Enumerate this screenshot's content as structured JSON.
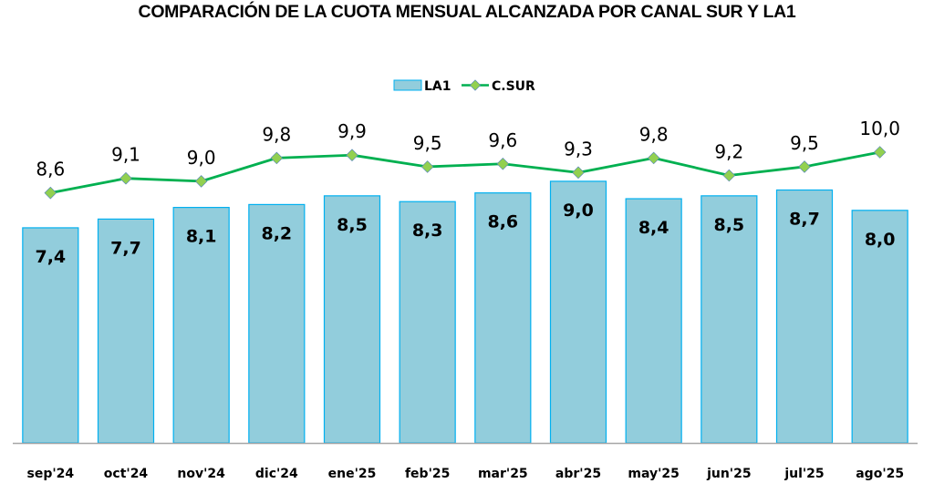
{
  "chart_data": {
    "type": "bar",
    "title": "COMPARACIÓN DE LA CUOTA MENSUAL ALCANZADA POR CANAL SUR Y LA1",
    "xlabel": "",
    "ylabel": "",
    "ylim": [
      0,
      15.25
    ],
    "grid": false,
    "legend_position": "top",
    "categories": [
      "sep'24",
      "oct'24",
      "nov'24",
      "dic'24",
      "ene'25",
      "feb'25",
      "mar'25",
      "abr'25",
      "may'25",
      "jun'25",
      "jul'25",
      "ago'25"
    ],
    "series": [
      {
        "name": "LA1",
        "type": "bar",
        "color": "#92CDDC",
        "border": "#00B0F0",
        "values": [
          7.4,
          7.7,
          8.1,
          8.2,
          8.5,
          8.3,
          8.6,
          9.0,
          8.4,
          8.5,
          8.7,
          8.0
        ],
        "labels": [
          "7,4",
          "7,7",
          "8,1",
          "8,2",
          "8,5",
          "8,3",
          "8,6",
          "9,0",
          "8,4",
          "8,5",
          "8,7",
          "8,0"
        ]
      },
      {
        "name": "C.SUR",
        "type": "line",
        "color": "#00B050",
        "marker_color": "#92D050",
        "values": [
          8.6,
          9.1,
          9.0,
          9.8,
          9.9,
          9.5,
          9.6,
          9.3,
          9.8,
          9.2,
          9.5,
          10.0
        ],
        "labels": [
          "8,6",
          "9,1",
          "9,0",
          "9,8",
          "9,9",
          "9,5",
          "9,6",
          "9,3",
          "9,8",
          "9,2",
          "9,5",
          "10,0"
        ]
      }
    ]
  }
}
